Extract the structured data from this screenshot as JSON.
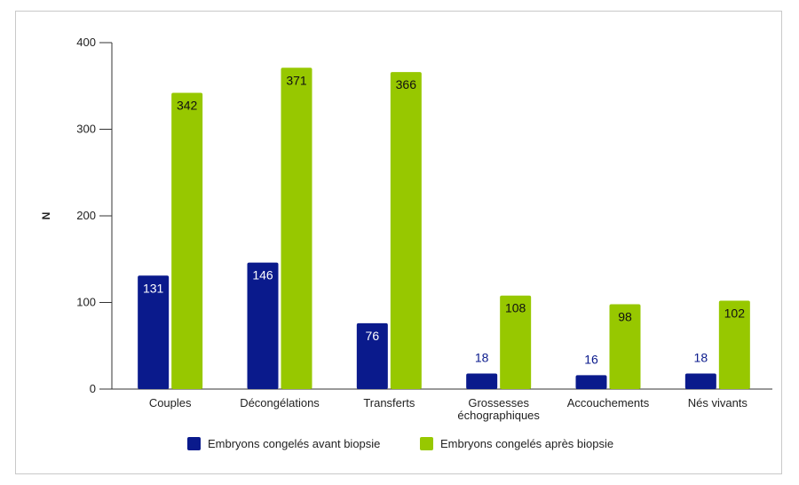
{
  "chart_data": {
    "type": "bar",
    "title": "",
    "xlabel": "",
    "ylabel": "N",
    "ylim": [
      0,
      400
    ],
    "yticks": [
      0,
      100,
      200,
      300,
      400
    ],
    "categories": [
      [
        "Couples"
      ],
      [
        "Décongélations"
      ],
      [
        "Transferts"
      ],
      [
        "Grossesses",
        "échographiques"
      ],
      [
        "Accouchements"
      ],
      [
        "Nés vivants"
      ]
    ],
    "series": [
      {
        "name": "Embryons congelés avant biopsie",
        "color": "#0a1a8c",
        "values": [
          131,
          146,
          76,
          18,
          16,
          18
        ]
      },
      {
        "name": "Embryons congelés après biopsie",
        "color": "#97c800",
        "values": [
          342,
          371,
          366,
          108,
          98,
          102
        ]
      }
    ],
    "legend_position": "bottom",
    "grid": false
  }
}
